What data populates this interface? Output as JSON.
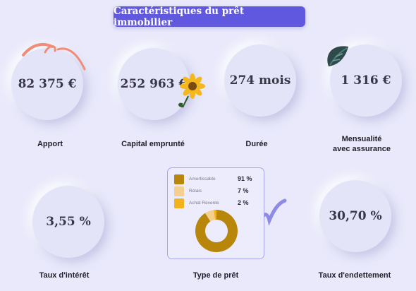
{
  "header": {
    "title": "Caractéristiques du prêt immobilier"
  },
  "metrics": [
    {
      "value": "82 375 €",
      "label": "Apport"
    },
    {
      "value": "252 963 €",
      "label": "Capital emprunté"
    },
    {
      "value": "274 mois",
      "label": "Durée"
    },
    {
      "value": "1 316 €",
      "label_line1": "Mensualité",
      "label_line2": "avec assurance"
    },
    {
      "value": "3,55 %",
      "label": "Taux d'intérêt"
    },
    {
      "label": "Type de prêt"
    },
    {
      "value": "30,70 %",
      "label": "Taux d'endettement"
    }
  ],
  "loan_type": {
    "items": [
      {
        "name": "Amortissable",
        "pct_text": "91 %",
        "value": 91,
        "color": "#b8860b"
      },
      {
        "name": "Relais",
        "pct_text": "7 %",
        "value": 7,
        "color": "#f5cf8e"
      },
      {
        "name": "Achat Revente",
        "pct_text": "2 %",
        "value": 2,
        "color": "#f2b21a"
      }
    ]
  },
  "colors": {
    "accent": "#6158e0",
    "background": "#e9e9fb",
    "circle": "#e4e4f8"
  },
  "chart_data": {
    "type": "pie",
    "categories": [
      "Amortissable",
      "Relais",
      "Achat Revente"
    ],
    "values": [
      91,
      7,
      2
    ],
    "title": "",
    "donut": true
  }
}
